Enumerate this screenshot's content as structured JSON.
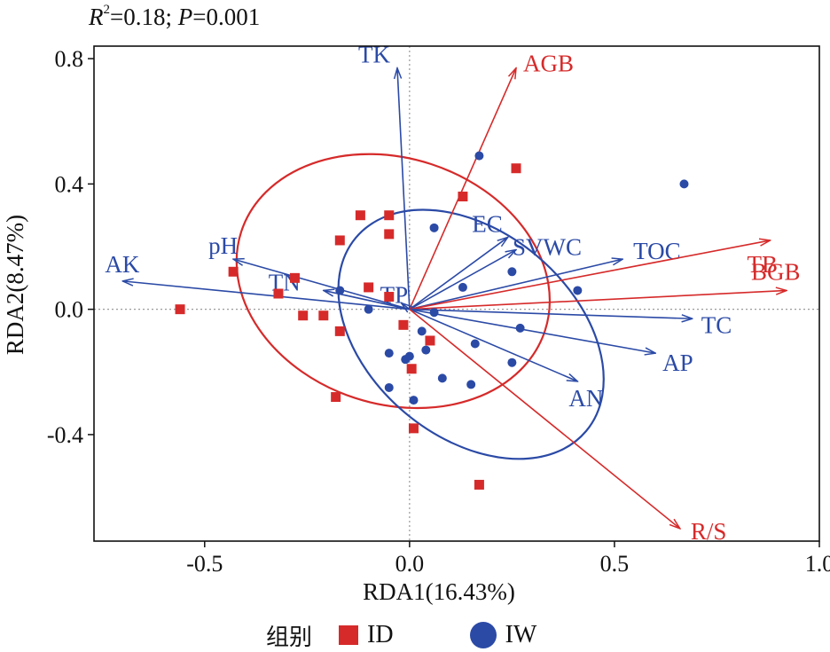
{
  "stat_text": {
    "r_symbol": "R",
    "r_power": "2",
    "r_rest": "=0.18; ",
    "p_symbol": "P",
    "p_rest": "=0.001"
  },
  "legend": {
    "title": "组别",
    "items": [
      {
        "label": "ID",
        "color": "#d62a2a",
        "shape": "square"
      },
      {
        "label": "IW",
        "color": "#2b4aa6",
        "shape": "circle"
      }
    ]
  },
  "chart_data": {
    "type": "scatter",
    "subtype": "RDA biplot",
    "xlabel": "RDA1(16.43%)",
    "ylabel": "RDA2(8.47%)",
    "xlim": [
      -0.77,
      1.0
    ],
    "ylim": [
      -0.74,
      0.84
    ],
    "x_ticks": [
      {
        "value": -0.5,
        "label": "-0.5"
      },
      {
        "value": 0.0,
        "label": "0.0"
      },
      {
        "value": 0.5,
        "label": "0.5"
      },
      {
        "value": 1.0,
        "label": "1.0"
      }
    ],
    "y_ticks": [
      {
        "value": -0.4,
        "label": "-0.4"
      },
      {
        "value": 0.0,
        "label": "0.0"
      },
      {
        "value": 0.4,
        "label": "0.4"
      },
      {
        "value": 0.8,
        "label": "0.8"
      }
    ],
    "groups": [
      {
        "name": "ID",
        "color": "#d62a2a",
        "marker": "square",
        "points": [
          [
            -0.56,
            0.0
          ],
          [
            -0.43,
            0.12
          ],
          [
            -0.32,
            0.05
          ],
          [
            -0.28,
            0.1
          ],
          [
            -0.26,
            -0.02
          ],
          [
            -0.21,
            -0.02
          ],
          [
            -0.17,
            0.22
          ],
          [
            -0.17,
            -0.07
          ],
          [
            -0.18,
            -0.28
          ],
          [
            -0.12,
            0.3
          ],
          [
            -0.1,
            0.07
          ],
          [
            -0.05,
            0.3
          ],
          [
            -0.05,
            0.24
          ],
          [
            -0.05,
            0.04
          ],
          [
            -0.015,
            -0.05
          ],
          [
            0.005,
            -0.19
          ],
          [
            0.01,
            -0.38
          ],
          [
            0.05,
            -0.1
          ],
          [
            0.13,
            0.36
          ],
          [
            0.17,
            -0.56
          ],
          [
            0.26,
            0.45
          ]
        ]
      },
      {
        "name": "IW",
        "color": "#2b4aa6",
        "marker": "circle",
        "points": [
          [
            -0.17,
            0.06
          ],
          [
            -0.1,
            0.0
          ],
          [
            -0.05,
            -0.14
          ],
          [
            -0.05,
            -0.25
          ],
          [
            -0.01,
            -0.16
          ],
          [
            0.0,
            -0.15
          ],
          [
            0.01,
            -0.29
          ],
          [
            0.03,
            -0.07
          ],
          [
            0.04,
            -0.13
          ],
          [
            0.06,
            -0.01
          ],
          [
            0.06,
            0.26
          ],
          [
            0.08,
            -0.22
          ],
          [
            0.13,
            0.07
          ],
          [
            0.15,
            -0.24
          ],
          [
            0.16,
            -0.11
          ],
          [
            0.17,
            0.49
          ],
          [
            0.25,
            0.12
          ],
          [
            0.25,
            -0.17
          ],
          [
            0.27,
            -0.06
          ],
          [
            0.41,
            0.06
          ],
          [
            0.67,
            0.4
          ]
        ]
      }
    ],
    "vectors": [
      {
        "name": "TK",
        "x": -0.03,
        "y": 0.77,
        "color": "#2b4aa6"
      },
      {
        "name": "AGB",
        "x": 0.26,
        "y": 0.77,
        "color": "#d62a2a"
      },
      {
        "name": "EC",
        "x": 0.24,
        "y": 0.23,
        "color": "#2b4aa6"
      },
      {
        "name": "SVWC",
        "x": 0.26,
        "y": 0.19,
        "color": "#2b4aa6"
      },
      {
        "name": "TOC",
        "x": 0.52,
        "y": 0.16,
        "color": "#2b4aa6"
      },
      {
        "name": "TB",
        "x": 0.88,
        "y": 0.22,
        "color": "#d62a2a"
      },
      {
        "name": "BGB",
        "x": 0.92,
        "y": 0.06,
        "color": "#d62a2a"
      },
      {
        "name": "TC",
        "x": 0.69,
        "y": -0.03,
        "color": "#2b4aa6"
      },
      {
        "name": "AP",
        "x": 0.6,
        "y": -0.14,
        "color": "#2b4aa6"
      },
      {
        "name": "AN",
        "x": 0.41,
        "y": -0.23,
        "color": "#2b4aa6"
      },
      {
        "name": "R/S",
        "x": 0.66,
        "y": -0.7,
        "color": "#d62a2a"
      },
      {
        "name": "AK",
        "x": -0.7,
        "y": 0.09,
        "color": "#2b4aa6"
      },
      {
        "name": "pH",
        "x": -0.43,
        "y": 0.16,
        "color": "#2b4aa6"
      },
      {
        "name": "TN",
        "x": -0.21,
        "y": 0.06,
        "color": "#2b4aa6"
      },
      {
        "name": "TP",
        "x": -0.02,
        "y": 0.02,
        "color": "#2b4aa6"
      }
    ],
    "ellipses": [
      {
        "group": "ID",
        "color": "#d62a2a",
        "cx": -0.04,
        "cy": 0.09,
        "rx": 0.3,
        "ry": 0.51,
        "angle_deg": 72
      },
      {
        "group": "IW",
        "color": "#2b4aa6",
        "cx": 0.15,
        "cy": -0.08,
        "rx": 0.25,
        "ry": 0.48,
        "angle_deg": 50
      }
    ],
    "reference_lines": {
      "x": 0.0,
      "y": 0.0,
      "style": "dotted"
    }
  }
}
